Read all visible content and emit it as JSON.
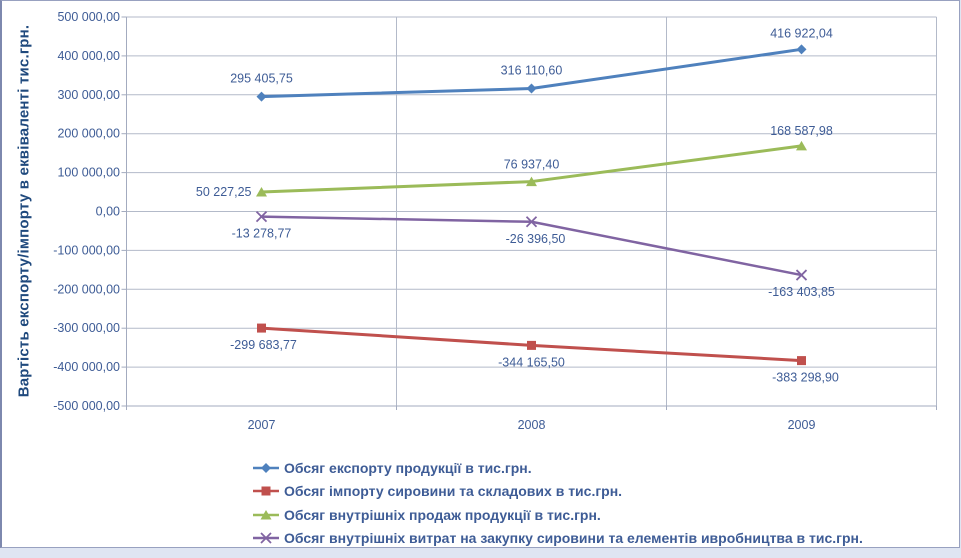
{
  "chart_data": {
    "type": "line",
    "title": "",
    "ylabel": "Вартість експорту/імпорту в еквіваленті тис.грн.",
    "xlabel": "",
    "categories": [
      "2007",
      "2008",
      "2009"
    ],
    "ylim": [
      -500000,
      500000
    ],
    "y_tick_step": 100000,
    "y_tick_labels": [
      "500 000,00",
      "400 000,00",
      "300 000,00",
      "200 000,00",
      "100 000,00",
      "0,00",
      "-100 000,00",
      "-200 000,00",
      "-300 000,00",
      "-400 000,00",
      "-500 000,00"
    ],
    "grid": true,
    "legend_position": "bottom",
    "series": [
      {
        "name": "Обсяг експорту продукції в тис.грн.",
        "color": "#4F81BD",
        "marker": "diamond",
        "values": [
          295405.75,
          316110.6,
          416922.04
        ],
        "labels": [
          "295 405,75",
          "316 110,60",
          "416 922,04"
        ]
      },
      {
        "name": "Обсяг імпорту сировини та складових в тис.грн.",
        "color": "#C0504D",
        "marker": "square",
        "values": [
          -299683.77,
          -344165.5,
          -383298.9
        ],
        "labels": [
          "-299 683,77",
          "-344 165,50",
          "-383 298,90"
        ]
      },
      {
        "name": "Обсяг внутрішніх продаж продукції в тис.грн.",
        "color": "#9BBB59",
        "marker": "triangle",
        "values": [
          50227.25,
          76937.4,
          168587.98
        ],
        "labels": [
          "50 227,25",
          "76 937,40",
          "168 587,98"
        ]
      },
      {
        "name": "Обсяг внутрішніх витрат на закупку сировини та елементів ивробництва в тис.грн.",
        "color": "#8064A2",
        "marker": "x",
        "values": [
          -13278.77,
          -26396.5,
          -163403.85
        ],
        "labels": [
          "-13 278,77",
          "-26 396,50",
          "-163 403,85"
        ]
      }
    ],
    "colors": {
      "text": "#3e5c96",
      "axis_title": "#1F497D",
      "gridline": "#b3bac9",
      "axis_line": "#a3abbf"
    }
  }
}
